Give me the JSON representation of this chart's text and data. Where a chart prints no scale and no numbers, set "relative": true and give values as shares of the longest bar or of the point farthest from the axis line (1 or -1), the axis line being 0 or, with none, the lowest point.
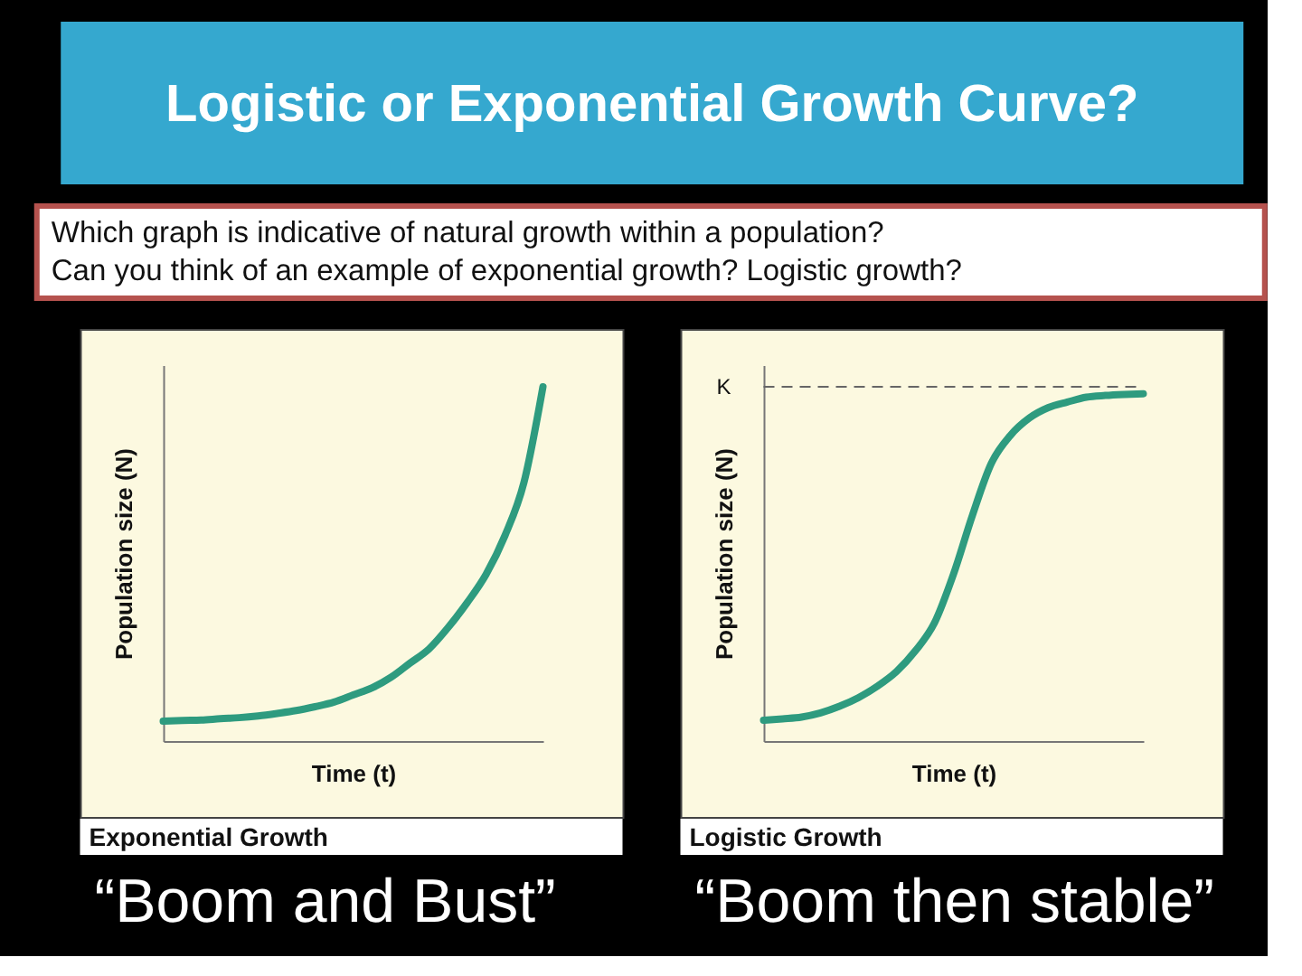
{
  "chart_data": [
    {
      "type": "other",
      "title": "Logistic or Exponential Growth Curve?",
      "annotations": [
        "Which graph is indicative of natural growth within a population?",
        "Can you think of an example of exponential growth? Logistic growth?"
      ]
    },
    {
      "type": "line",
      "title": "Exponential Growth",
      "xlabel": "Time (t)",
      "ylabel": "Population size (N)",
      "relative": true,
      "categories": [
        null,
        null,
        null,
        null,
        null,
        null,
        null,
        null,
        null,
        null,
        null,
        null,
        null,
        null,
        null,
        null,
        null,
        null,
        null,
        null,
        null
      ],
      "series": [
        {
          "color": "#2e9b7f",
          "line_style": "solid",
          "values": [
            0.056,
            0.058,
            0.059,
            0.063,
            0.066,
            0.071,
            0.078,
            0.086,
            0.097,
            0.11,
            0.13,
            0.15,
            0.18,
            0.22,
            0.26,
            0.32,
            0.39,
            0.47,
            0.58,
            0.73,
            1.0
          ]
        }
      ],
      "annotations": [
        "“Boom and Bust”"
      ]
    },
    {
      "type": "line",
      "title": "Logistic Growth",
      "xlabel": "Time (t)",
      "ylabel": "Population size (N)",
      "relative": true,
      "categories": [
        null,
        null,
        null,
        null,
        null,
        null,
        null,
        null,
        null,
        null,
        null,
        null,
        null,
        null,
        null,
        null,
        null,
        null,
        null,
        null,
        null
      ],
      "series": [
        {
          "color": "#2e9b7f",
          "line_style": "solid",
          "values": [
            0.06,
            0.064,
            0.069,
            0.081,
            0.1,
            0.125,
            0.158,
            0.2,
            0.26,
            0.34,
            0.48,
            0.65,
            0.8,
            0.88,
            0.93,
            0.96,
            0.976,
            0.99,
            0.995,
            0.998,
            1.0
          ]
        }
      ],
      "ref_lines": [
        {
          "axis": "y",
          "value": 1.02,
          "label": "K",
          "color": "#666666",
          "line_style": "dashed"
        }
      ],
      "annotations": [
        "“Boom then stable”"
      ]
    }
  ]
}
